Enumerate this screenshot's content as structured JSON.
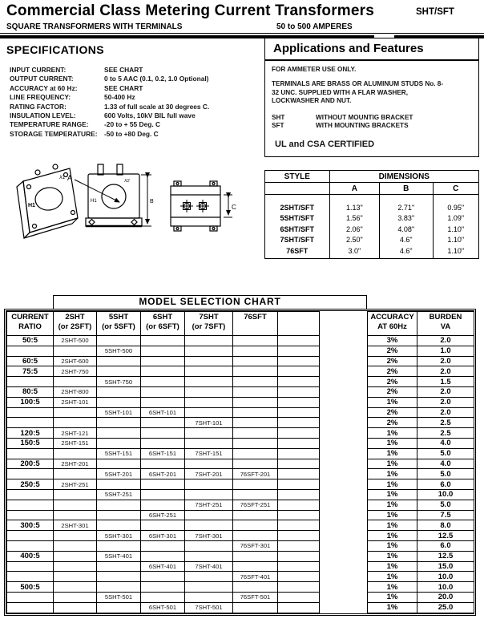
{
  "header": {
    "title": "Commercial Class Metering Current Transformers",
    "model_code": "SHT/SFT",
    "subtitle_left": "SQUARE TRANSFORMERS WITH TERMINALS",
    "subtitle_right": "50 to 500 AMPERES"
  },
  "specifications": {
    "heading": "SPECIFICATIONS",
    "items": [
      {
        "label": "INPUT CURRENT:",
        "value": "SEE CHART"
      },
      {
        "label": "OUTPUT CURRENT:",
        "value": "0 to 5 AAC  (0.1, 0.2, 1.0 Optional)"
      },
      {
        "label": "ACCURACY at 60 Hz:",
        "value": "SEE CHART"
      },
      {
        "label": "LINE FREQUENCY:",
        "value": "50-400 Hz"
      },
      {
        "label": "RATING FACTOR:",
        "value": "1.33 of full scale at 30 degrees C."
      },
      {
        "label": "INSULATION LEVEL:",
        "value": "600 Volts, 10kV BIL full wave"
      },
      {
        "label": "TEMPERATURE RANGE:",
        "value": "-20 to + 55 Deg. C"
      },
      {
        "label": "STORAGE TEMPERATURE:",
        "value": "-50 to +80 Deg. C"
      }
    ]
  },
  "applications": {
    "heading": "Applications and Features",
    "line1": "FOR AMMETER USE ONLY.",
    "line2": "TERMINALS ARE BRASS OR ALUMINUM STUDS No. 8-32 UNC. SUPPLIED WITH A FLAR WASHER, LOCKWASHER AND NUT.",
    "notes": [
      {
        "code": "SHT",
        "desc": "WITHOUT MOUNTIG BRACKET"
      },
      {
        "code": "SFT",
        "desc": "WITH MOUNTING BRACKETS"
      }
    ],
    "certification": "UL and CSA CERTIFIED"
  },
  "dimensions_table": {
    "style_header": "STYLE",
    "group_header": "DIMENSIONS",
    "columns": [
      "A",
      "B",
      "C"
    ],
    "rows": [
      {
        "style": "2SHT/SFT",
        "a": "1.13\"",
        "b": "2.71\"",
        "c": "0.95\""
      },
      {
        "style": "5SHT/SFT",
        "a": "1.56\"",
        "b": "3.83\"",
        "c": "1.09\""
      },
      {
        "style": "6SHT/SFT",
        "a": "2.06\"",
        "b": "4.08\"",
        "c": "1.10\""
      },
      {
        "style": "7SHT/SFT",
        "a": "2.50\"",
        "b": "4.6\"",
        "c": "1.10\""
      },
      {
        "style": "76SFT",
        "a": "3.0\"",
        "b": "4.6\"",
        "c": "1.10\""
      }
    ]
  },
  "diagrams": {
    "labels": {
      "dim_a": "A",
      "dim_b": "B",
      "dim_c": "C",
      "h1": "H1",
      "x1": "X1",
      "x2": "X2"
    }
  },
  "model_chart": {
    "title": "MODEL SELECTION CHART",
    "headers": {
      "ratio": [
        "CURRENT",
        "RATIO"
      ],
      "m2": [
        "2SHT",
        "(or 2SFT)"
      ],
      "m5": [
        "5SHT",
        "(or 5SFT)"
      ],
      "m6": [
        "6SHT",
        "(or 6SFT)"
      ],
      "m7": [
        "7SHT",
        "(or 7SFT)"
      ],
      "m76": [
        "76SFT",
        ""
      ],
      "accuracy": [
        "ACCURACY",
        "AT 60Hz"
      ],
      "burden": [
        "BURDEN",
        "VA"
      ]
    },
    "rows": [
      [
        "50:5",
        "2SHT-500",
        "",
        "",
        "",
        "",
        "3%",
        "2.0"
      ],
      [
        "",
        "",
        "5SHT-500",
        "",
        "",
        "",
        "2%",
        "1.0"
      ],
      [
        "60:5",
        "2SHT-600",
        "",
        "",
        "",
        "",
        "2%",
        "2.0"
      ],
      [
        "75:5",
        "2SHT-750",
        "",
        "",
        "",
        "",
        "2%",
        "2.0"
      ],
      [
        "",
        "",
        "5SHT-750",
        "",
        "",
        "",
        "2%",
        "1.5"
      ],
      [
        "80:5",
        "2SHT-800",
        "",
        "",
        "",
        "",
        "2%",
        "2.0"
      ],
      [
        "100:5",
        "2SHT-101",
        "",
        "",
        "",
        "",
        "1%",
        "2.0"
      ],
      [
        "",
        "",
        "5SHT-101",
        "6SHT-101",
        "",
        "",
        "2%",
        "2.0"
      ],
      [
        "",
        "",
        "",
        "",
        "7SHT-101",
        "",
        "2%",
        "2.5"
      ],
      [
        "120:5",
        "2SHT-121",
        "",
        "",
        "",
        "",
        "1%",
        "2.5"
      ],
      [
        "150:5",
        "2SHT-151",
        "",
        "",
        "",
        "",
        "1%",
        "4.0"
      ],
      [
        "",
        "",
        "5SHT-151",
        "6SHT-151",
        "7SHT-151",
        "",
        "1%",
        "5.0"
      ],
      [
        "200:5",
        "2SHT-201",
        "",
        "",
        "",
        "",
        "1%",
        "4.0"
      ],
      [
        "",
        "",
        "5SHT-201",
        "6SHT-201",
        "7SHT-201",
        "76SFT-201",
        "1%",
        "5.0"
      ],
      [
        "250:5",
        "2SHT-251",
        "",
        "",
        "",
        "",
        "1%",
        "6.0"
      ],
      [
        "",
        "",
        "5SHT-251",
        "",
        "",
        "",
        "1%",
        "10.0"
      ],
      [
        "",
        "",
        "",
        "",
        "7SHT-251",
        "76SFT-251",
        "1%",
        "5.0"
      ],
      [
        "",
        "",
        "",
        "6SHT-251",
        "",
        "",
        "1%",
        "7.5"
      ],
      [
        "300:5",
        "2SHT-301",
        "",
        "",
        "",
        "",
        "1%",
        "8.0"
      ],
      [
        "",
        "",
        "5SHT-301",
        "6SHT-301",
        "7SHT-301",
        "",
        "1%",
        "12.5"
      ],
      [
        "",
        "",
        "",
        "",
        "",
        "76SFT-301",
        "1%",
        "6.0"
      ],
      [
        "400:5",
        "",
        "5SHT-401",
        "",
        "",
        "",
        "1%",
        "12.5"
      ],
      [
        "",
        "",
        "",
        "6SHT-401",
        "7SHT-401",
        "",
        "1%",
        "15.0"
      ],
      [
        "",
        "",
        "",
        "",
        "",
        "76SFT-401",
        "1%",
        "10.0"
      ],
      [
        "500:5",
        "",
        "",
        "",
        "",
        "",
        "1%",
        "10.0"
      ],
      [
        "",
        "",
        "5SHT-501",
        "",
        "",
        "76SFT-501",
        "1%",
        "20.0"
      ],
      [
        "",
        "",
        "",
        "6SHT-501",
        "7SHT-501",
        "",
        "1%",
        "25.0"
      ]
    ]
  }
}
